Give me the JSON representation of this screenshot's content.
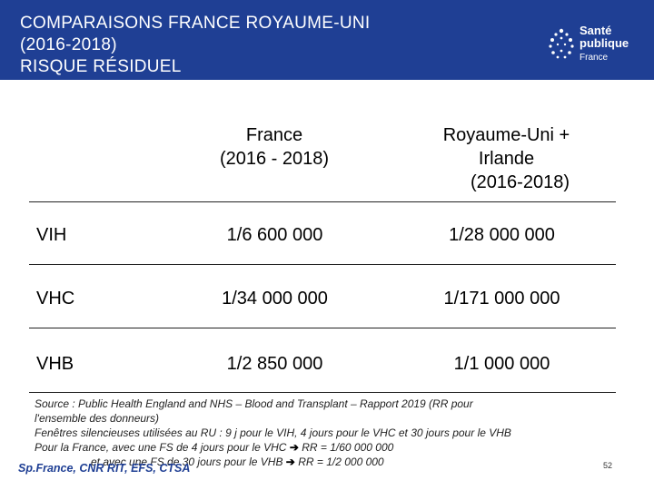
{
  "header": {
    "title_lines": [
      "COMPARAISONS FRANCE ROYAUME-UNI",
      "(2016-2018)",
      "RISQUE RÉSIDUEL"
    ],
    "logo": {
      "line1": "Santé",
      "line2": "publique",
      "line3": "France",
      "icon": "dots-logo-icon",
      "color": "#ffffff"
    },
    "background": "#1f3f94"
  },
  "table": {
    "headers": {
      "france": [
        "France",
        "(2016 - 2018)"
      ],
      "uk": [
        "Royaume-Uni +",
        "Irlande",
        "(2016-2018)"
      ]
    },
    "rows": [
      {
        "label": "VIH",
        "france": "1/6 600 000",
        "uk": "1/28 000 000"
      },
      {
        "label": "VHC",
        "france": "1/34 000 000",
        "uk": "1/171 000 000"
      },
      {
        "label": "VHB",
        "france": "1/2 850 000",
        "uk": "1/1 000 000"
      }
    ]
  },
  "source": {
    "line1": "Source : Public Health England and NHS – Blood and Transplant – Rapport 2019 (RR pour",
    "line2": "l'ensemble des donneurs)",
    "line3": "Fenêtres silencieuses utilisées au RU : 9 j pour le VIH, 4 jours pour le VHC et 30 jours pour le VHB",
    "line4_a": "Pour la France, avec une FS de 4 jours pour le VHC",
    "line4_b": "RR = 1/60 000 000",
    "line5_a": "et avec une FS de 30 jours pour le VHB",
    "line5_b": "RR = 1/2 000 000"
  },
  "footer": {
    "credit": "Sp.France, CNR RIT, EFS, CTSA",
    "page": "52"
  }
}
